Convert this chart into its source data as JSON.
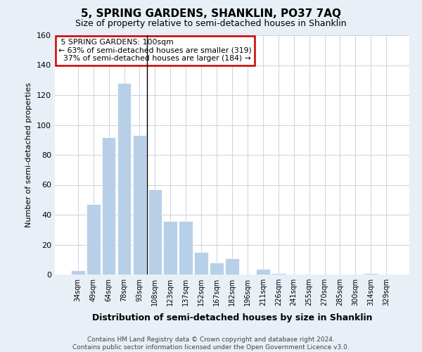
{
  "title": "5, SPRING GARDENS, SHANKLIN, PO37 7AQ",
  "subtitle": "Size of property relative to semi-detached houses in Shanklin",
  "xlabel": "Distribution of semi-detached houses by size in Shanklin",
  "ylabel": "Number of semi-detached properties",
  "categories": [
    "34sqm",
    "49sqm",
    "64sqm",
    "78sqm",
    "93sqm",
    "108sqm",
    "123sqm",
    "137sqm",
    "152sqm",
    "167sqm",
    "182sqm",
    "196sqm",
    "211sqm",
    "226sqm",
    "241sqm",
    "255sqm",
    "270sqm",
    "285sqm",
    "300sqm",
    "314sqm",
    "329sqm"
  ],
  "values": [
    3,
    47,
    92,
    128,
    93,
    57,
    36,
    36,
    15,
    8,
    11,
    0,
    4,
    1,
    0,
    0,
    0,
    0,
    0,
    1,
    0
  ],
  "bar_color": "#b8cfe8",
  "property_label": "5 SPRING GARDENS: 100sqm",
  "pct_smaller": "63%",
  "pct_larger": "37%",
  "count_smaller": 319,
  "count_larger": 184,
  "property_line_x": 4.5,
  "ylim": [
    0,
    160
  ],
  "yticks": [
    0,
    20,
    40,
    60,
    80,
    100,
    120,
    140,
    160
  ],
  "annotation_box_facecolor": "#ffffff",
  "annotation_box_edgecolor": "#cc0000",
  "footer_line1": "Contains HM Land Registry data © Crown copyright and database right 2024.",
  "footer_line2": "Contains public sector information licensed under the Open Government Licence v3.0.",
  "bg_color": "#e8eff7",
  "plot_bg_color": "#ffffff",
  "grid_color": "#c8d4e0",
  "title_fontsize": 11,
  "subtitle_fontsize": 9,
  "ylabel_fontsize": 8,
  "xlabel_fontsize": 9,
  "tick_fontsize": 7,
  "footer_fontsize": 6.5,
  "ann_fontsize": 7.8
}
